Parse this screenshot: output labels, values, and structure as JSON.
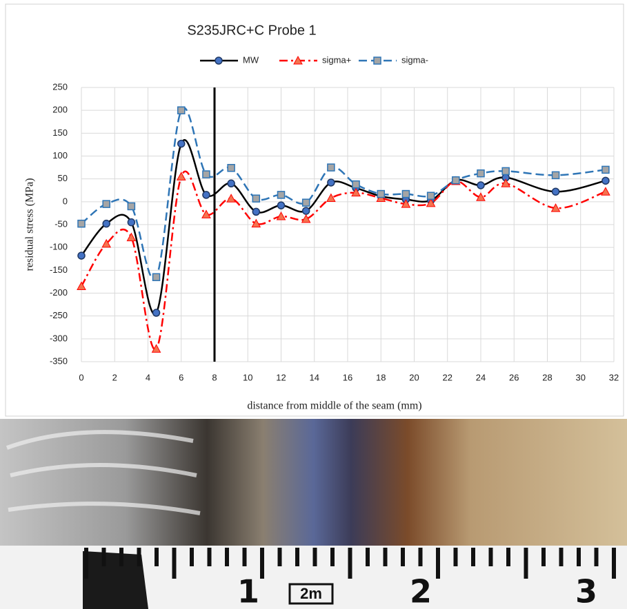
{
  "chart_data": {
    "type": "line",
    "title": "S235JRC+C Probe 1",
    "x_label": "distance from middle of the seam (mm)",
    "y_label": "residual stress (MPa)",
    "x": [
      0,
      1.5,
      3,
      4.5,
      6,
      7.5,
      9,
      10.5,
      12,
      13.5,
      15,
      16.5,
      18,
      19.5,
      21,
      22.5,
      24,
      25.5,
      28.5,
      31.5
    ],
    "series": [
      {
        "name": "MW",
        "color": "#000000",
        "marker_color": "#4472c4",
        "marker": "circle",
        "dash": "solid",
        "values": [
          -118,
          -48,
          -45,
          -243,
          127,
          15,
          40,
          -22,
          -8,
          -20,
          42,
          30,
          12,
          5,
          3,
          47,
          36,
          53,
          22,
          46
        ]
      },
      {
        "name": "sigma+",
        "color": "#ff0000",
        "marker_color": "#f4734f",
        "marker": "triangle",
        "dash": "dashdot",
        "values": [
          -185,
          -92,
          -78,
          -322,
          55,
          -28,
          7,
          -48,
          -32,
          -38,
          8,
          20,
          8,
          -5,
          -3,
          45,
          10,
          40,
          -14,
          22
        ]
      },
      {
        "name": "sigma-",
        "color": "#2e75b6",
        "marker_color": "#a5a5a5",
        "marker": "square",
        "dash": "dashed",
        "values": [
          -48,
          -5,
          -10,
          -165,
          200,
          60,
          74,
          7,
          15,
          -2,
          75,
          38,
          17,
          17,
          13,
          47,
          62,
          67,
          58,
          70
        ]
      }
    ],
    "xlim": [
      0,
      32
    ],
    "xticks": [
      0,
      2,
      4,
      6,
      8,
      10,
      12,
      14,
      16,
      18,
      20,
      22,
      24,
      26,
      28,
      30,
      32
    ],
    "ylim": [
      -350,
      250
    ],
    "yticks": [
      -350,
      -300,
      -250,
      -200,
      -150,
      -100,
      -50,
      0,
      50,
      100,
      150,
      200,
      250
    ],
    "vline_x": 8,
    "grid": true,
    "legend": "top"
  },
  "photo": {
    "ruler_labels": [
      "1",
      "2m",
      "2",
      "3"
    ]
  }
}
